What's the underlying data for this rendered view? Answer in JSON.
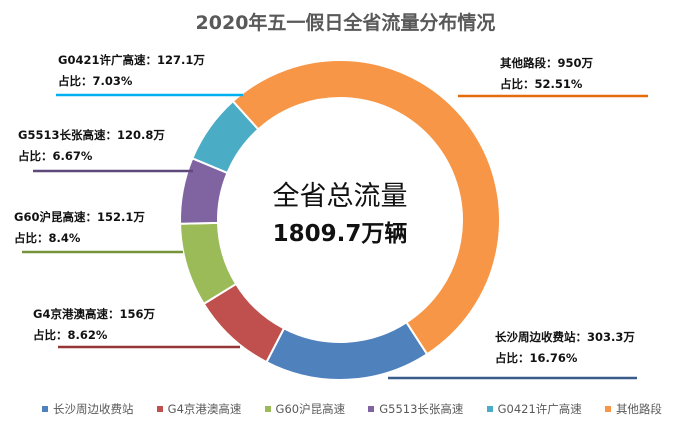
{
  "chart_data": {
    "type": "pie",
    "subtype": "donut",
    "title": "2020年五一假日全省流量分布情况",
    "center_label": {
      "line1": "全省总流量",
      "line2": "1809.7万辆"
    },
    "total": 1809.7,
    "unit": "万",
    "categories": [
      "长沙周边收费站",
      "G4京港澳高速",
      "G60沪昆高速",
      "G5513长张高速",
      "G0421许广高速",
      "其他路段"
    ],
    "values": [
      303.3,
      156,
      152.1,
      120.8,
      127.1,
      950
    ],
    "percent": [
      16.76,
      8.62,
      8.4,
      6.67,
      7.03,
      52.51
    ],
    "colors": [
      "#4f81bd",
      "#c0504d",
      "#9bbb59",
      "#8064a2",
      "#4bacc6",
      "#f79646"
    ],
    "leader_colors": [
      "#385d8a",
      "#953735",
      "#77933c",
      "#5f497a",
      "#00b0f0",
      "#e46c0a"
    ],
    "data_labels": [
      {
        "line1": "长沙周边收费站：303.3万",
        "line2": "占比：16.76%"
      },
      {
        "line1": "G4京港澳高速：156万",
        "line2": "占比：8.62%"
      },
      {
        "line1": "G60沪昆高速：152.1万",
        "line2": "占比：8.4%"
      },
      {
        "line1": "G5513长张高速：120.8万",
        "line2": "占比：6.67%"
      },
      {
        "line1": "G0421许广高速：127.1万",
        "line2": "占比：7.03%"
      },
      {
        "line1": "其他路段：950万",
        "line2": "占比：52.51%"
      }
    ],
    "legend_position": "bottom"
  }
}
